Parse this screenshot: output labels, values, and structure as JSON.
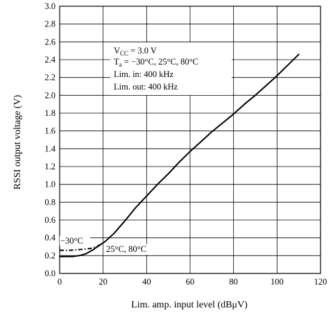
{
  "chart_data": {
    "type": "line",
    "title": "",
    "xlabel": "Lim. amp. input level  (dBμV)",
    "ylabel": "RSSI output voltage  (V)",
    "xlim": [
      0,
      120
    ],
    "ylim": [
      0.0,
      3.0
    ],
    "x_ticks": [
      "0",
      "20",
      "40",
      "60",
      "80",
      "100",
      "120"
    ],
    "y_ticks": [
      "0.0",
      "0.2",
      "0.4",
      "0.6",
      "0.8",
      "1.0",
      "1.2",
      "1.4",
      "1.6",
      "1.8",
      "2.0",
      "2.2",
      "2.4",
      "2.6",
      "2.8",
      "3.0"
    ],
    "grid": true,
    "conditions": {
      "vcc": {
        "sym": "V",
        "sub": "CC",
        "rest": " = 3.0 V"
      },
      "ta": {
        "sym": "T",
        "sub": "a",
        "rest": " = −30°C, 25°C, 80°C"
      },
      "lim_in": "Lim. in: 400 kHz",
      "lim_out": "Lim. out: 400 kHz"
    },
    "series": [
      {
        "name": "25°C, 80°C",
        "style": "solid",
        "color": "#000000",
        "x": [
          0,
          3,
          6,
          9,
          12,
          15,
          18,
          21,
          25,
          30,
          35,
          40,
          45,
          50,
          55,
          60,
          65,
          70,
          75,
          80,
          85,
          90,
          95,
          100,
          105,
          110
        ],
        "y": [
          0.19,
          0.19,
          0.19,
          0.2,
          0.22,
          0.26,
          0.31,
          0.36,
          0.45,
          0.59,
          0.74,
          0.87,
          1.0,
          1.12,
          1.25,
          1.37,
          1.48,
          1.59,
          1.69,
          1.79,
          1.9,
          2.0,
          2.11,
          2.22,
          2.34,
          2.46
        ]
      },
      {
        "name": "−30°C",
        "style": "dash-dot",
        "color": "#000000",
        "x": [
          0,
          5,
          10,
          14,
          17,
          19
        ],
        "y": [
          0.26,
          0.26,
          0.27,
          0.28,
          0.3,
          0.33
        ]
      }
    ]
  }
}
